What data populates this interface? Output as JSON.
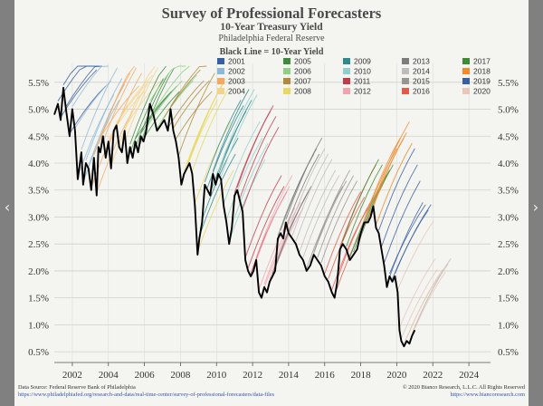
{
  "nav": {
    "prev_icon": "chevron-left-icon",
    "next_icon": "chevron-right-icon",
    "prev_glyph": "‹",
    "next_glyph": "›"
  },
  "footer": {
    "source": "Data Source: Federal Reserve Bank of Philadelphia",
    "source_url": "https://www.philadelphiafed.org/research-and-data/real-time-center/survey-of-professional-forecasters/data-files",
    "copyright": "© 2020 Bianco Research, L.L.C. All Rights Reserved",
    "site_url": "https://www.biancoresearch.com"
  },
  "chart_data": {
    "type": "line",
    "title": "Survey of Professional Forecasters",
    "subtitle": "10-Year Treasury Yield",
    "source_line": "Philadelphia Federal Reserve",
    "legend_title": "Black Line = 10-Year Yield",
    "xlim": [
      2001.0,
      2025.2
    ],
    "ylim": [
      0.3,
      5.85
    ],
    "x_ticks": [
      2002,
      2004,
      2006,
      2008,
      2010,
      2012,
      2014,
      2016,
      2018,
      2020,
      2022,
      2024
    ],
    "y_ticks": [
      0.5,
      1.0,
      1.5,
      2.0,
      2.5,
      3.0,
      3.5,
      4.0,
      4.5,
      5.0,
      5.5
    ],
    "y_tick_labels": [
      "0.5%",
      "1.0%",
      "1.5%",
      "2.0%",
      "2.5%",
      "3.0%",
      "3.5%",
      "4.0%",
      "4.5%",
      "5.0%",
      "5.5%"
    ],
    "series": [
      {
        "name": "2001",
        "color": "#3a5fa0"
      },
      {
        "name": "2002",
        "color": "#8fb8d8"
      },
      {
        "name": "2003",
        "color": "#f3a963"
      },
      {
        "name": "2004",
        "color": "#f4d38a"
      },
      {
        "name": "2005",
        "color": "#3d8c3d"
      },
      {
        "name": "2006",
        "color": "#8cd085"
      },
      {
        "name": "2007",
        "color": "#b08a3a"
      },
      {
        "name": "2008",
        "color": "#e8d860"
      },
      {
        "name": "2009",
        "color": "#2f8a8f"
      },
      {
        "name": "2010",
        "color": "#8fd0cf"
      },
      {
        "name": "2011",
        "color": "#c23b4c"
      },
      {
        "name": "2012",
        "color": "#f4a3ae"
      },
      {
        "name": "2013",
        "color": "#7d7d7d"
      },
      {
        "name": "2014",
        "color": "#c0bcbc"
      },
      {
        "name": "2015",
        "color": "#9a9492"
      },
      {
        "name": "2016",
        "color": "#e35a48"
      },
      {
        "name": "2017",
        "color": "#3f8a35"
      },
      {
        "name": "2018",
        "color": "#f08a2a"
      },
      {
        "name": "2019",
        "color": "#3a5fa0"
      },
      {
        "name": "2020",
        "color": "#e6c7b8"
      }
    ],
    "yield_line": {
      "name": "10-Year Yield",
      "color": "#000000",
      "x": [
        2001.0,
        2001.2,
        2001.35,
        2001.5,
        2001.65,
        2001.85,
        2002.0,
        2002.15,
        2002.3,
        2002.5,
        2002.6,
        2002.75,
        2002.9,
        2003.05,
        2003.2,
        2003.35,
        2003.45,
        2003.55,
        2003.7,
        2003.85,
        2004.0,
        2004.15,
        2004.3,
        2004.45,
        2004.6,
        2004.75,
        2004.9,
        2005.05,
        2005.2,
        2005.35,
        2005.5,
        2005.65,
        2005.8,
        2005.95,
        2006.1,
        2006.3,
        2006.5,
        2006.7,
        2006.9,
        2007.1,
        2007.3,
        2007.45,
        2007.6,
        2007.75,
        2007.9,
        2008.05,
        2008.2,
        2008.35,
        2008.5,
        2008.65,
        2008.8,
        2008.95,
        2009.05,
        2009.2,
        2009.35,
        2009.5,
        2009.65,
        2009.8,
        2009.95,
        2010.1,
        2010.25,
        2010.4,
        2010.55,
        2010.7,
        2010.85,
        2011.0,
        2011.15,
        2011.3,
        2011.45,
        2011.6,
        2011.75,
        2011.9,
        2012.05,
        2012.2,
        2012.35,
        2012.5,
        2012.65,
        2012.8,
        2012.95,
        2013.1,
        2013.25,
        2013.4,
        2013.55,
        2013.7,
        2013.85,
        2014.0,
        2014.2,
        2014.4,
        2014.6,
        2014.8,
        2015.0,
        2015.2,
        2015.4,
        2015.6,
        2015.8,
        2016.0,
        2016.2,
        2016.4,
        2016.55,
        2016.7,
        2016.85,
        2017.0,
        2017.2,
        2017.4,
        2017.6,
        2017.8,
        2018.0,
        2018.2,
        2018.4,
        2018.55,
        2018.7,
        2018.85,
        2019.0,
        2019.15,
        2019.3,
        2019.45,
        2019.6,
        2019.75,
        2019.9,
        2020.05,
        2020.15,
        2020.25,
        2020.4,
        2020.55,
        2020.7,
        2020.85,
        2021.0
      ],
      "y": [
        4.9,
        5.1,
        4.8,
        5.4,
        5.0,
        4.5,
        5.0,
        4.6,
        3.7,
        4.2,
        3.6,
        4.0,
        3.9,
        3.5,
        4.1,
        3.4,
        4.3,
        4.2,
        4.5,
        4.1,
        4.4,
        3.9,
        4.6,
        4.7,
        4.3,
        4.2,
        4.6,
        4.0,
        4.3,
        4.1,
        4.4,
        4.2,
        4.5,
        4.4,
        4.6,
        5.1,
        4.9,
        4.6,
        4.7,
        4.8,
        4.6,
        5.0,
        4.6,
        4.4,
        4.1,
        3.6,
        3.8,
        3.9,
        4.0,
        3.8,
        3.2,
        2.3,
        2.6,
        2.9,
        3.6,
        3.5,
        3.4,
        3.8,
        3.6,
        3.8,
        3.7,
        3.2,
        2.9,
        2.5,
        2.8,
        3.4,
        3.5,
        3.3,
        3.1,
        2.2,
        2.0,
        1.9,
        2.0,
        2.2,
        1.6,
        1.5,
        1.7,
        1.6,
        1.8,
        1.9,
        2.0,
        2.6,
        2.7,
        2.6,
        2.9,
        2.7,
        2.6,
        2.5,
        2.3,
        2.2,
        2.0,
        2.1,
        2.3,
        2.2,
        2.1,
        1.9,
        1.8,
        1.6,
        1.5,
        1.8,
        2.4,
        2.5,
        2.4,
        2.2,
        2.3,
        2.4,
        2.7,
        2.9,
        2.9,
        3.0,
        3.2,
        2.8,
        2.7,
        2.4,
        2.1,
        1.7,
        1.9,
        1.8,
        1.9,
        1.6,
        0.9,
        0.7,
        0.6,
        0.7,
        0.65,
        0.8,
        0.9
      ]
    }
  }
}
